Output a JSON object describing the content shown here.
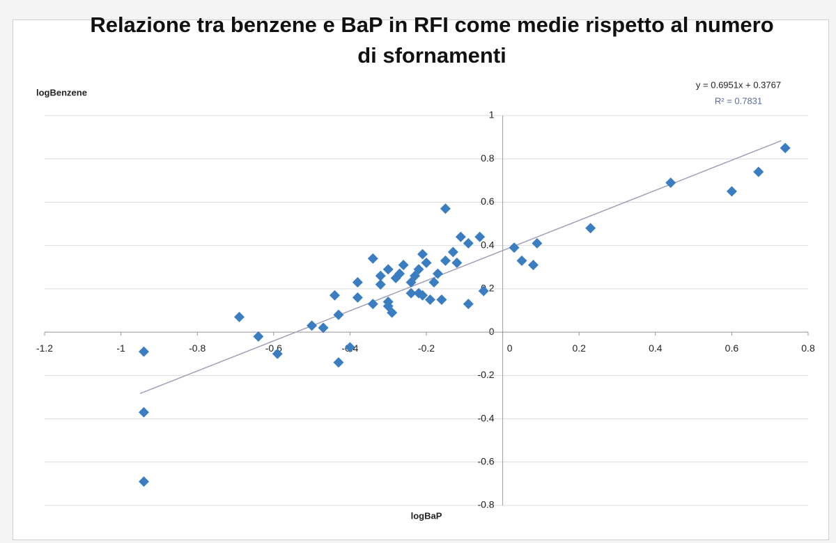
{
  "chart_data": {
    "type": "scatter",
    "title": "Relazione tra benzene e BaP in RFI come medie rispetto al numero di sfornamenti",
    "y_label": "logBenzene",
    "x_label": "logBaP",
    "color": "#3a7dc0",
    "grid": true,
    "xlim": [
      -1.2,
      0.8
    ],
    "xticks": [
      -1.2,
      -1,
      -0.8,
      -0.6,
      -0.4,
      -0.2,
      0,
      0.2,
      0.4,
      0.6,
      0.8
    ],
    "ylim": [
      -0.8,
      1
    ],
    "yticks": [
      -0.8,
      -0.6,
      -0.4,
      -0.2,
      0,
      0.2,
      0.4,
      0.6,
      0.8,
      1
    ],
    "x": [
      -0.94,
      -0.94,
      -0.94,
      -0.69,
      -0.64,
      -0.59,
      -0.5,
      -0.47,
      -0.44,
      -0.43,
      -0.43,
      -0.4,
      -0.38,
      -0.38,
      -0.34,
      -0.34,
      -0.32,
      -0.32,
      -0.3,
      -0.3,
      -0.3,
      -0.29,
      -0.28,
      -0.27,
      -0.26,
      -0.24,
      -0.24,
      -0.23,
      -0.22,
      -0.22,
      -0.21,
      -0.21,
      -0.2,
      -0.19,
      -0.18,
      -0.17,
      -0.16,
      -0.15,
      -0.15,
      -0.13,
      -0.12,
      -0.11,
      -0.09,
      -0.09,
      -0.06,
      -0.05,
      0.03,
      0.05,
      0.08,
      0.09,
      0.23,
      0.44,
      0.6,
      0.67,
      0.74
    ],
    "values": [
      -0.09,
      -0.37,
      -0.69,
      0.07,
      -0.02,
      -0.1,
      0.03,
      0.02,
      0.17,
      -0.14,
      0.08,
      -0.07,
      0.23,
      0.16,
      0.34,
      0.13,
      0.22,
      0.26,
      0.29,
      0.14,
      0.12,
      0.09,
      0.25,
      0.27,
      0.31,
      0.18,
      0.23,
      0.26,
      0.29,
      0.18,
      0.17,
      0.36,
      0.32,
      0.15,
      0.23,
      0.27,
      0.15,
      0.57,
      0.33,
      0.37,
      0.32,
      0.44,
      0.13,
      0.41,
      0.44,
      0.19,
      0.39,
      0.33,
      0.31,
      0.41,
      0.48,
      0.69,
      0.65,
      0.74,
      0.85
    ],
    "trendline": {
      "slope": 0.6951,
      "intercept": 0.3767,
      "x_range": [
        -0.95,
        0.73
      ],
      "color": "#a0a0b8",
      "equation": "y = 0.6951x + 0.3767",
      "r2": "R² = 0.7831"
    }
  }
}
